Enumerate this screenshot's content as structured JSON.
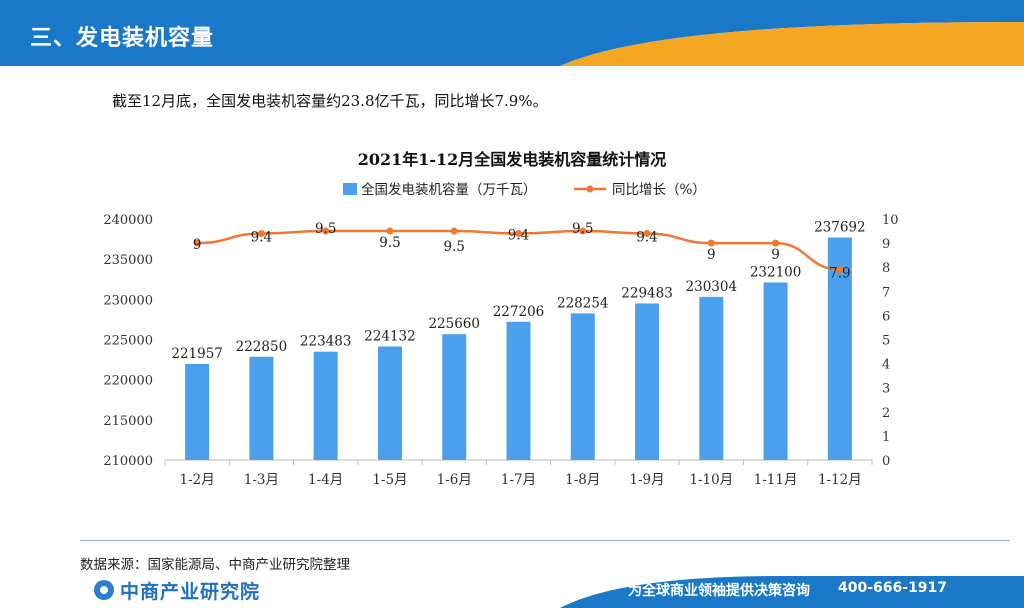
{
  "header": {
    "title": "三、发电装机容量",
    "colors": {
      "blue": "#1a78c8",
      "orange": "#f5a623"
    }
  },
  "summary": "截至12月底，全国发电装机容量约23.8亿千瓦，同比增长7.9%。",
  "chart_data": {
    "type": "bar+line",
    "title": "2021年1-12月全国发电装机容量统计情况",
    "categories": [
      "1-2月",
      "1-3月",
      "1-4月",
      "1-5月",
      "1-6月",
      "1-7月",
      "1-8月",
      "1-9月",
      "1-10月",
      "1-11月",
      "1-12月"
    ],
    "series": [
      {
        "name": "全国发电装机容量（万千瓦）",
        "type": "bar",
        "axis": "left",
        "color": "#4aa0ec",
        "values": [
          221957,
          222850,
          223483,
          224132,
          225660,
          227206,
          228254,
          229483,
          230304,
          232100,
          237692
        ]
      },
      {
        "name": "同比增长（%）",
        "type": "line",
        "axis": "right",
        "color": "#f07832",
        "values": [
          9,
          9.4,
          9.5,
          9.5,
          9.5,
          9.4,
          9.5,
          9.4,
          9,
          9,
          7.9
        ]
      }
    ],
    "y_left": {
      "min": 210000,
      "max": 240000,
      "step": 5000,
      "ticks": [
        "210000",
        "215000",
        "220000",
        "225000",
        "230000",
        "235000",
        "240000"
      ]
    },
    "y_right": {
      "min": 0,
      "max": 10,
      "step": 1,
      "ticks": [
        "0",
        "1",
        "2",
        "3",
        "4",
        "5",
        "6",
        "7",
        "8",
        "9",
        "10"
      ]
    },
    "legend_position": "top-center",
    "grid": false
  },
  "source": "数据来源：国家能源局、中商产业研究院整理",
  "footer": {
    "logo": "中商产业研究院",
    "slogan": "为全球商业领袖提供决策咨询",
    "phone": "400-666-1917"
  }
}
